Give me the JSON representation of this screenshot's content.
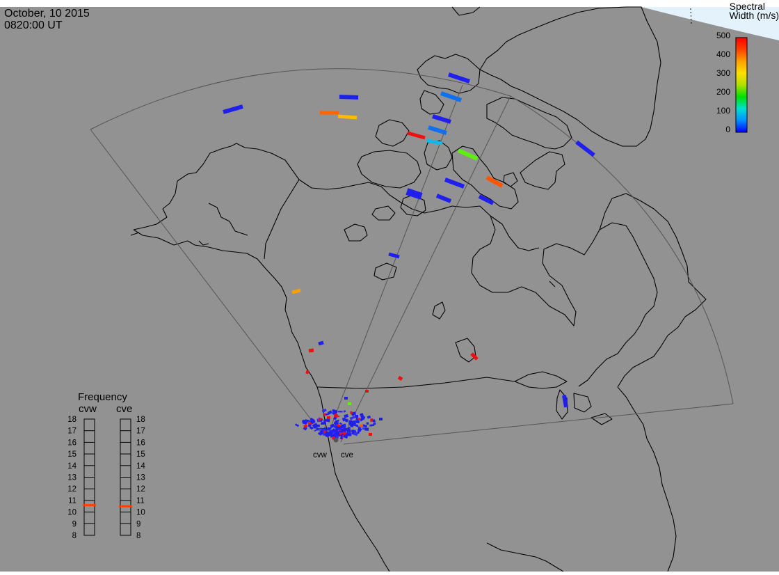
{
  "header": {
    "date": "October, 10 2015",
    "time": "0820:00 UT"
  },
  "colorbar": {
    "title_line1": "Spectral",
    "title_line2": "Width (m/s)",
    "ticks": [
      "500",
      "400",
      "300",
      "200",
      "100",
      "0"
    ],
    "min": 0,
    "max": 500,
    "gradient": [
      "#0000ff",
      "#0090ff",
      "#00e0d0",
      "#00e000",
      "#b0e000",
      "#ffe000",
      "#ffa000",
      "#ff4000",
      "#ff0000"
    ]
  },
  "frequency_panel": {
    "title": "Frequency",
    "radars": [
      {
        "name": "cvw",
        "value_mhz": 10.6
      },
      {
        "name": "cve",
        "value_mhz": 10.5
      }
    ],
    "ticks": [
      "18",
      "17",
      "16",
      "15",
      "14",
      "13",
      "12",
      "11",
      "10",
      "9",
      "8"
    ]
  },
  "radar_sites": {
    "labels": [
      "cvw",
      "cve"
    ]
  },
  "colors": {
    "map_background": "#929292",
    "coastline": "#000000",
    "fov_outline": "#555555",
    "daylight": "#e4f3fb"
  },
  "echoes": [
    {
      "w": 10,
      "color": "#2020ee"
    },
    {
      "w": 20,
      "color": "#2020ee"
    },
    {
      "w": 400,
      "color": "#ff6600"
    },
    {
      "w": 350,
      "color": "#ffbb00"
    },
    {
      "w": 10,
      "color": "#2020ee"
    },
    {
      "w": 60,
      "color": "#1070ee"
    },
    {
      "w": 20,
      "color": "#2020ee"
    },
    {
      "w": 60,
      "color": "#1070ee"
    },
    {
      "w": 480,
      "color": "#ee1010"
    },
    {
      "w": 110,
      "color": "#10b8ee"
    },
    {
      "w": 220,
      "color": "#60ee10"
    },
    {
      "w": 20,
      "color": "#2020ee"
    },
    {
      "w": 420,
      "color": "#ff5500"
    },
    {
      "w": 10,
      "color": "#2020ee"
    },
    {
      "w": 20,
      "color": "#2020ee"
    },
    {
      "w": 10,
      "color": "#2020ee"
    },
    {
      "w": 10,
      "color": "#2020ee"
    },
    {
      "w": 20,
      "color": "#2020ee"
    },
    {
      "w": 360,
      "color": "#ffa000"
    },
    {
      "w": 480,
      "color": "#ee1010"
    },
    {
      "w": 20,
      "color": "#2020ee"
    },
    {
      "w": 480,
      "color": "#ee1010"
    },
    {
      "w": 480,
      "color": "#ee1010"
    },
    {
      "w": 480,
      "color": "#ee1010"
    },
    {
      "w": 10,
      "color": "#2020ee"
    }
  ]
}
